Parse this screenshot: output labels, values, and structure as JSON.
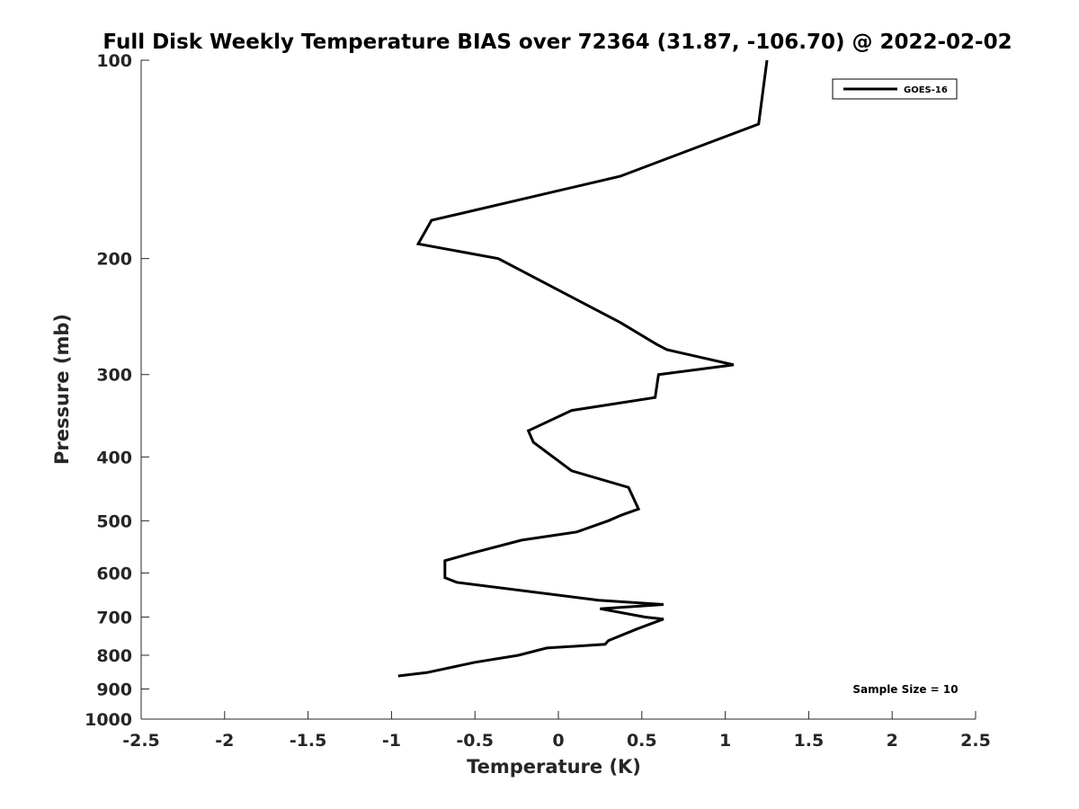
{
  "chart_data": {
    "type": "line",
    "title": "Full Disk Weekly Temperature BIAS over 72364 (31.87, -106.70) @ 2022-02-02",
    "xlabel": "Temperature (K)",
    "ylabel": "Pressure (mb)",
    "xlim": [
      -2.5,
      2.5
    ],
    "ylim": [
      1000,
      100
    ],
    "y_scale": "log",
    "y_reversed": true,
    "grid": false,
    "legend_position": "top-right",
    "x_ticks": [
      -2.5,
      -2,
      -1.5,
      -1,
      -0.5,
      0,
      0.5,
      1,
      1.5,
      2,
      2.5
    ],
    "x_tick_labels": [
      "-2.5",
      "-2",
      "-1.5",
      "-1",
      "-0.5",
      "0",
      "0.5",
      "1",
      "1.5",
      "2",
      "2.5"
    ],
    "y_ticks": [
      100,
      200,
      300,
      400,
      500,
      600,
      700,
      800,
      900,
      1000
    ],
    "y_tick_labels": [
      "100",
      "200",
      "300",
      "400",
      "500",
      "600",
      "700",
      "800",
      "900",
      "1000"
    ],
    "annotation": "Sample Size = 10",
    "series": [
      {
        "name": "GOES-16",
        "color": "#000000",
        "points": [
          {
            "x": 1.25,
            "y": 100
          },
          {
            "x": 1.2,
            "y": 125
          },
          {
            "x": 0.37,
            "y": 150
          },
          {
            "x": -0.76,
            "y": 175
          },
          {
            "x": -0.84,
            "y": 190
          },
          {
            "x": -0.36,
            "y": 200
          },
          {
            "x": 0.37,
            "y": 250
          },
          {
            "x": 0.59,
            "y": 270
          },
          {
            "x": 0.65,
            "y": 275
          },
          {
            "x": 1.05,
            "y": 290
          },
          {
            "x": 0.6,
            "y": 300
          },
          {
            "x": 0.58,
            "y": 325
          },
          {
            "x": 0.08,
            "y": 340
          },
          {
            "x": -0.18,
            "y": 365
          },
          {
            "x": -0.15,
            "y": 380
          },
          {
            "x": 0.08,
            "y": 420
          },
          {
            "x": 0.42,
            "y": 445
          },
          {
            "x": 0.48,
            "y": 480
          },
          {
            "x": 0.38,
            "y": 490
          },
          {
            "x": 0.3,
            "y": 500
          },
          {
            "x": 0.11,
            "y": 520
          },
          {
            "x": -0.22,
            "y": 535
          },
          {
            "x": -0.52,
            "y": 560
          },
          {
            "x": -0.68,
            "y": 575
          },
          {
            "x": -0.68,
            "y": 610
          },
          {
            "x": -0.61,
            "y": 620
          },
          {
            "x": 0.24,
            "y": 660
          },
          {
            "x": 0.63,
            "y": 670
          },
          {
            "x": 0.25,
            "y": 680
          },
          {
            "x": 0.52,
            "y": 700
          },
          {
            "x": 0.63,
            "y": 705
          },
          {
            "x": 0.47,
            "y": 730
          },
          {
            "x": 0.3,
            "y": 760
          },
          {
            "x": 0.28,
            "y": 770
          },
          {
            "x": -0.07,
            "y": 780
          },
          {
            "x": -0.24,
            "y": 800
          },
          {
            "x": -0.5,
            "y": 820
          },
          {
            "x": -0.79,
            "y": 850
          },
          {
            "x": -0.96,
            "y": 860
          }
        ]
      }
    ]
  }
}
